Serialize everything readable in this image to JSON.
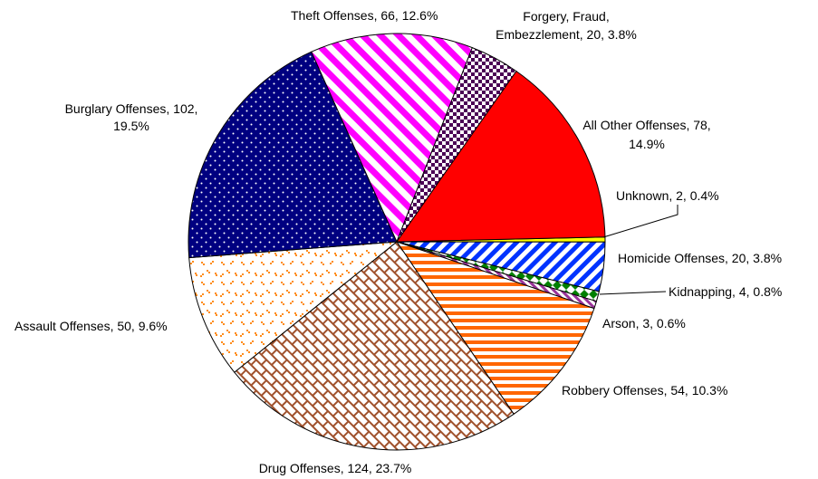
{
  "chart_data": {
    "type": "pie",
    "title": "",
    "unit": "offenses",
    "slices": [
      {
        "key": "unknown",
        "name": "Unknown",
        "value": 2,
        "percent": "0.4%",
        "label_lines": [
          "Unknown, 2, 0.4%"
        ],
        "color": "#ffff00",
        "pattern": "solid"
      },
      {
        "key": "homicide",
        "name": "Homicide Offenses",
        "value": 20,
        "percent": "3.8%",
        "label_lines": [
          "Homicide Offenses, 20, 3.8%"
        ],
        "color": "#0033ff",
        "pattern": "diagonal-stripes"
      },
      {
        "key": "kidnapping",
        "name": "Kidnapping",
        "value": 4,
        "percent": "0.8%",
        "label_lines": [
          "Kidnapping, 4, 0.8%"
        ],
        "color": "#008000",
        "pattern": "diamonds"
      },
      {
        "key": "arson",
        "name": "Arson",
        "value": 3,
        "percent": "0.6%",
        "label_lines": [
          "Arson, 3, 0.6%"
        ],
        "color": "#993399",
        "pattern": "diagonal-stripes"
      },
      {
        "key": "robbery",
        "name": "Robbery Offenses",
        "value": 54,
        "percent": "10.3%",
        "label_lines": [
          "Robbery Offenses, 54, 10.3%"
        ],
        "color": "#ff6600",
        "pattern": "horizontal-stripes"
      },
      {
        "key": "drug",
        "name": "Drug Offenses",
        "value": 124,
        "percent": "23.7%",
        "label_lines": [
          "Drug Offenses, 124, 23.7%"
        ],
        "color": "#a0522d",
        "pattern": "brick"
      },
      {
        "key": "assault",
        "name": "Assault Offenses",
        "value": 50,
        "percent": "9.6%",
        "label_lines": [
          "Assault Offenses, 50, 9.6%"
        ],
        "color": "#ff8c1a",
        "pattern": "confetti"
      },
      {
        "key": "burglary",
        "name": "Burglary Offenses",
        "value": 102,
        "percent": "19.5%",
        "label_lines": [
          "Burglary Offenses, 102,",
          "19.5%"
        ],
        "color": "#000080",
        "pattern": "dots"
      },
      {
        "key": "theft",
        "name": "Theft Offenses",
        "value": 66,
        "percent": "12.6%",
        "label_lines": [
          "Theft Offenses, 66, 12.6%"
        ],
        "color": "#ff00ff",
        "pattern": "wide-diagonal-stripes"
      },
      {
        "key": "forgery",
        "name": "Forgery, Fraud, Embezzlement",
        "value": 20,
        "percent": "3.8%",
        "label_lines": [
          "Forgery, Fraud,",
          "Embezzlement, 20, 3.8%"
        ],
        "color": "#4b0055",
        "pattern": "checker"
      },
      {
        "key": "other",
        "name": "All Other Offenses",
        "value": 78,
        "percent": "14.9%",
        "label_lines": [
          "All Other Offenses, 78,",
          "14.9%"
        ],
        "color": "#ff0000",
        "pattern": "solid"
      }
    ]
  }
}
